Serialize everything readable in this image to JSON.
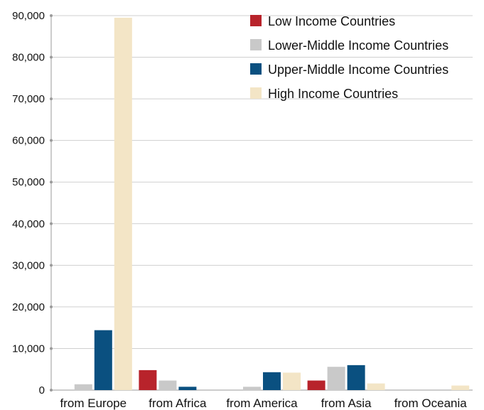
{
  "chart_data": {
    "type": "bar",
    "categories": [
      "from Europe",
      "from Africa",
      "from America",
      "from Asia",
      "from Oceania"
    ],
    "series": [
      {
        "name": "Low Income Countries",
        "color": "#b8232b",
        "values": [
          0,
          4800,
          0,
          2300,
          0
        ]
      },
      {
        "name": "Lower-Middle Income Countries",
        "color": "#c9c9c9",
        "values": [
          1400,
          2300,
          800,
          5600,
          0
        ]
      },
      {
        "name": "Upper-Middle Income Countries",
        "color": "#0a5080",
        "values": [
          14400,
          800,
          4300,
          6000,
          0
        ]
      },
      {
        "name": "High Income Countries",
        "color": "#f3e5c6",
        "values": [
          89500,
          0,
          4200,
          1600,
          1100
        ]
      }
    ],
    "yticks": [
      "0",
      "10,000",
      "20,000",
      "30,000",
      "40,000",
      "50,000",
      "60,000",
      "70,000",
      "80,000",
      "90,000"
    ],
    "ylim": [
      0,
      90000
    ],
    "grid": true,
    "legend_position": "top-right"
  }
}
